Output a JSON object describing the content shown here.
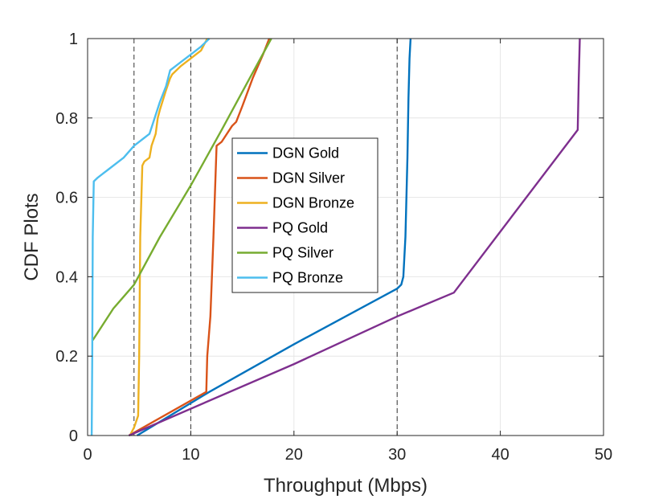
{
  "chart_data": {
    "type": "line",
    "title": "",
    "xlabel": "Throughput (Mbps)",
    "ylabel": "CDF Plots",
    "xlim": [
      0,
      50
    ],
    "ylim": [
      0,
      1
    ],
    "xticks": [
      "0",
      "10",
      "20",
      "30",
      "40",
      "50"
    ],
    "yticks": [
      "0",
      "0.2",
      "0.4",
      "0.6",
      "0.8",
      "1"
    ],
    "grid": true,
    "legend_position": "center",
    "reference_lines_x": [
      4.5,
      10,
      30
    ],
    "series": [
      {
        "name": "DGN Gold",
        "color": "#0072BD",
        "x": [
          4.8,
          11.8,
          20.0,
          30.0,
          30.4,
          30.6,
          30.8,
          31.0,
          31.1,
          31.2,
          31.3
        ],
        "y": [
          0.0,
          0.11,
          0.23,
          0.37,
          0.38,
          0.4,
          0.5,
          0.7,
          0.85,
          0.95,
          1.0
        ]
      },
      {
        "name": "DGN Silver",
        "color": "#D95319",
        "x": [
          4.0,
          11.5,
          11.6,
          11.9,
          12.2,
          12.5,
          13.0,
          13.5,
          14.0,
          14.4,
          15.0,
          16.0,
          17.0,
          17.6
        ],
        "y": [
          0.0,
          0.11,
          0.2,
          0.3,
          0.5,
          0.73,
          0.74,
          0.76,
          0.78,
          0.79,
          0.83,
          0.9,
          0.96,
          1.0
        ]
      },
      {
        "name": "DGN Bronze",
        "color": "#EDB120",
        "x": [
          4.1,
          4.5,
          4.9,
          5.0,
          5.1,
          5.3,
          5.5,
          6.0,
          6.2,
          6.6,
          6.8,
          7.0,
          7.6,
          8.0,
          8.2,
          9.0,
          10.0,
          11.0,
          11.6
        ],
        "y": [
          0.0,
          0.02,
          0.05,
          0.2,
          0.5,
          0.68,
          0.69,
          0.7,
          0.73,
          0.76,
          0.8,
          0.82,
          0.87,
          0.9,
          0.91,
          0.93,
          0.95,
          0.97,
          1.0
        ]
      },
      {
        "name": "PQ Gold",
        "color": "#7E2F8E",
        "x": [
          4.0,
          20.0,
          30.0,
          35.5,
          47.5,
          47.6,
          47.7
        ],
        "y": [
          0.0,
          0.18,
          0.3,
          0.36,
          0.77,
          0.9,
          1.0
        ]
      },
      {
        "name": "PQ Silver",
        "color": "#77AC30",
        "x": [
          0.5,
          2.5,
          4.5,
          7.0,
          10.0,
          13.0,
          15.5,
          17.8
        ],
        "y": [
          0.24,
          0.32,
          0.38,
          0.5,
          0.63,
          0.77,
          0.89,
          1.0
        ]
      },
      {
        "name": "PQ Bronze",
        "color": "#4DBEEE",
        "x": [
          0.4,
          0.45,
          0.5,
          0.6,
          1.0,
          2.0,
          3.5,
          4.5,
          5.5,
          6.0,
          6.5,
          7.0,
          7.6,
          8.0,
          8.5,
          9.0,
          10.0,
          11.0,
          11.8
        ],
        "y": [
          0.0,
          0.2,
          0.5,
          0.64,
          0.65,
          0.67,
          0.7,
          0.73,
          0.75,
          0.76,
          0.8,
          0.84,
          0.88,
          0.92,
          0.93,
          0.94,
          0.96,
          0.98,
          1.0
        ]
      }
    ]
  }
}
